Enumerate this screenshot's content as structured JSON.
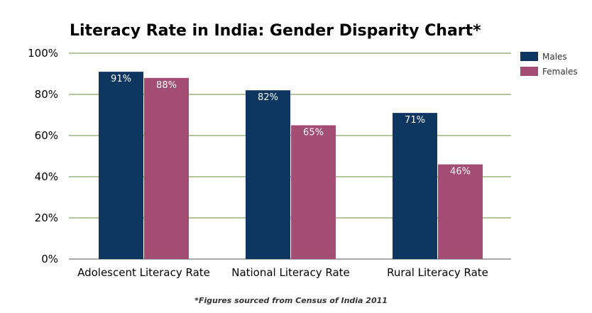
{
  "chart_data": {
    "type": "bar",
    "title": "Literacy Rate in India: Gender Disparity Chart*",
    "categories": [
      "Adolescent Literacy Rate",
      "National Literacy Rate",
      "Rural Literacy Rate"
    ],
    "series": [
      {
        "name": "Males",
        "values": [
          91,
          82,
          71
        ],
        "labels": [
          "91%",
          "82%",
          "71%"
        ],
        "color": "#0d3660"
      },
      {
        "name": "Females",
        "values": [
          88,
          65,
          46
        ],
        "labels": [
          "88%",
          "65%",
          "46%"
        ],
        "color": "#a34d75"
      }
    ],
    "ylim": [
      0,
      100
    ],
    "y_ticks": [
      0,
      20,
      40,
      60,
      80,
      100
    ],
    "y_tick_labels": [
      "0%",
      "20%",
      "40%",
      "60%",
      "80%",
      "100%"
    ],
    "grid": true,
    "grid_color": "#6b8e3a",
    "legend_position": "top-right",
    "xlabel": "",
    "ylabel": ""
  },
  "footnote": "*Figures sourced from Census of India 2011"
}
